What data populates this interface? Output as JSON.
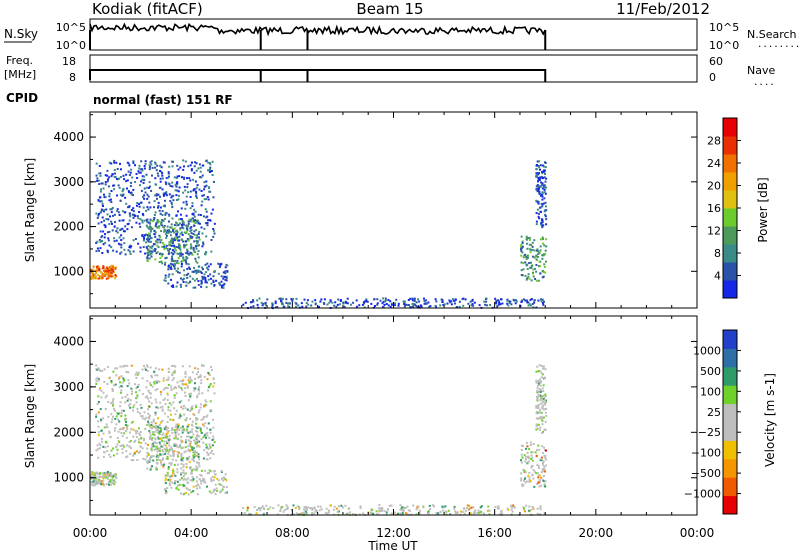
{
  "header": {
    "radar": "Kodiak (fitACF)",
    "beam": "Beam 15",
    "date": "11/Feb/2012"
  },
  "nsky": {
    "label": "N.Sky",
    "ticks": [
      "10^5",
      "10^0"
    ],
    "right_ticks": [
      "10^5",
      "10^0"
    ],
    "right_label": "N.Search",
    "right_legend": "........"
  },
  "freq": {
    "label_line1": "Freq.",
    "label_line2": "[MHz]",
    "ticks": [
      "18",
      "8"
    ],
    "right_ticks": [
      "60",
      "0"
    ],
    "right_label": "Nave",
    "right_legend": "...."
  },
  "cpid": {
    "label": "CPID",
    "value": "normal (fast) 151 RF"
  },
  "colors": {
    "power": [
      "#1428e6",
      "#2a52a8",
      "#3a8a88",
      "#4e9a5a",
      "#6ccc2e",
      "#e0c010",
      "#f0a000",
      "#f07000",
      "#e83000",
      "#e60000"
    ],
    "velocity": [
      "#e60000",
      "#f05a00",
      "#f59600",
      "#f0c000",
      "#bebebe",
      "#bebebe",
      "#6ed22a",
      "#2f9a6a",
      "#2f6fa8",
      "#2340c8"
    ]
  },
  "chart_data": [
    {
      "type": "heatmap",
      "name": "power",
      "ylabel": "Slant Range [km]",
      "xlabel": "",
      "x_ticks": [
        "00:00",
        "04:00",
        "08:00",
        "12:00",
        "16:00",
        "20:00",
        "00:00"
      ],
      "y_ticks": [
        "1000",
        "2000",
        "3000",
        "4000"
      ],
      "ylim": [
        180,
        4560
      ],
      "xlim_hours": [
        0,
        24
      ],
      "colorbar": {
        "label": "Power [dB]",
        "ticks": [
          "4",
          "8",
          "12",
          "16",
          "20",
          "24",
          "28"
        ],
        "range": [
          0,
          32
        ]
      },
      "regions": [
        {
          "t0": 0.0,
          "t1": 1.0,
          "r0": 850,
          "r1": 1150,
          "level": 0.72
        },
        {
          "t0": 0.2,
          "t1": 4.9,
          "r0": 1400,
          "r1": 3500,
          "level": 0.12
        },
        {
          "t0": 2.2,
          "t1": 4.3,
          "r0": 1200,
          "r1": 2200,
          "level": 0.28
        },
        {
          "t0": 2.9,
          "t1": 5.4,
          "r0": 650,
          "r1": 1200,
          "level": 0.16
        },
        {
          "t0": 17.0,
          "t1": 18.0,
          "r0": 800,
          "r1": 1800,
          "level": 0.32
        },
        {
          "t0": 17.6,
          "t1": 18.0,
          "r0": 2000,
          "r1": 3500,
          "level": 0.1
        },
        {
          "t0": 6.0,
          "t1": 18.0,
          "r0": 200,
          "r1": 420,
          "level": 0.12
        }
      ]
    },
    {
      "type": "heatmap",
      "name": "velocity",
      "ylabel": "Slant Range [km]",
      "xlabel": "Time UT",
      "x_ticks": [
        "00:00",
        "04:00",
        "08:00",
        "12:00",
        "16:00",
        "20:00",
        "00:00"
      ],
      "y_ticks": [
        "1000",
        "2000",
        "3000",
        "4000"
      ],
      "ylim": [
        180,
        4560
      ],
      "xlim_hours": [
        0,
        24
      ],
      "colorbar": {
        "label": "Velocity [m s-1]",
        "ticks": [
          "1000",
          "500",
          "100",
          "25",
          "−25",
          "−100",
          "−500",
          "−1000"
        ]
      },
      "regions": [
        {
          "t0": 0.0,
          "t1": 1.0,
          "r0": 850,
          "r1": 1150,
          "level": 0.5
        },
        {
          "t0": 0.2,
          "t1": 4.9,
          "r0": 1400,
          "r1": 3500,
          "level": 0.5
        },
        {
          "t0": 2.2,
          "t1": 4.3,
          "r0": 1200,
          "r1": 2200,
          "level": 0.5
        },
        {
          "t0": 2.9,
          "t1": 5.4,
          "r0": 650,
          "r1": 1200,
          "level": 0.5
        },
        {
          "t0": 17.0,
          "t1": 18.0,
          "r0": 800,
          "r1": 1800,
          "level": 0.35
        },
        {
          "t0": 17.6,
          "t1": 18.0,
          "r0": 2000,
          "r1": 3500,
          "level": 0.6
        },
        {
          "t0": 6.0,
          "t1": 18.0,
          "r0": 200,
          "r1": 420,
          "level": 0.45
        }
      ]
    }
  ]
}
